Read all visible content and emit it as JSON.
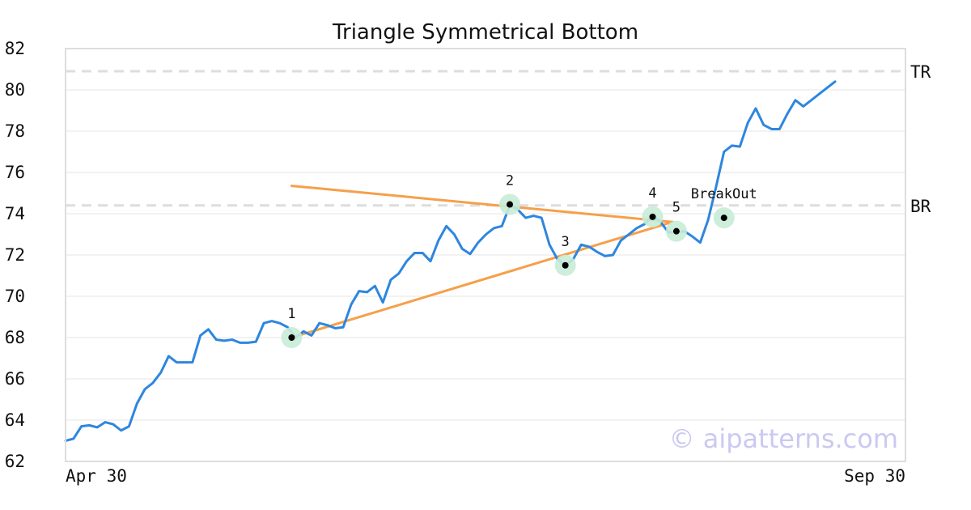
{
  "chart_data": {
    "type": "line",
    "title": "Triangle Symmetrical Bottom",
    "x_start_label": "Apr 30",
    "x_end_label": "Sep 30",
    "ylim": [
      62,
      82
    ],
    "y_ticks": [
      "62",
      "64",
      "66",
      "68",
      "70",
      "72",
      "74",
      "76",
      "78",
      "80",
      "82"
    ],
    "grid": true,
    "colors": {
      "price": "#2e86de",
      "trend": "#f5a04a",
      "marker_halo": "#c7ecd6",
      "reference": "#dddddd",
      "grid": "#e6e6e6",
      "frame": "#dddddd",
      "watermark": "#c9c9f2"
    },
    "series": [
      {
        "values": [
          63.0,
          63.1,
          63.7,
          63.75,
          63.65,
          63.9,
          63.8,
          63.5,
          63.7,
          64.8,
          65.5,
          65.8,
          66.3,
          67.1,
          66.8,
          66.8,
          66.8,
          68.1,
          68.4,
          67.9,
          67.85,
          67.9,
          67.75,
          67.75,
          67.8,
          68.7,
          68.8,
          68.7,
          68.5,
          68.0,
          68.3,
          68.1,
          68.7,
          68.6,
          68.45,
          68.5,
          69.6,
          70.25,
          70.2,
          70.5,
          69.7,
          70.8,
          71.1,
          71.7,
          72.1,
          72.1,
          71.7,
          72.7,
          73.4,
          73.0,
          72.3,
          72.05,
          72.6,
          73.0,
          73.3,
          73.4,
          74.4,
          74.2,
          73.8,
          73.9,
          73.8,
          72.5,
          71.8,
          71.5,
          71.8,
          72.5,
          72.4,
          72.15,
          71.95,
          72.0,
          72.7,
          73.0,
          73.3,
          73.5,
          73.9,
          73.6,
          73.1,
          73.1,
          73.15,
          72.9,
          72.6,
          73.7,
          75.3,
          77.0,
          77.3,
          77.25,
          78.4,
          79.1,
          78.3,
          78.1,
          78.1,
          78.85,
          79.5,
          79.2,
          79.5,
          79.8,
          80.1,
          80.4
        ]
      }
    ],
    "trend_lines": [
      {
        "from": [
          28.5,
          75.35
        ],
        "to": [
          76.5,
          73.6
        ]
      },
      {
        "from": [
          28.5,
          68.0
        ],
        "to": [
          76.5,
          73.6
        ]
      }
    ],
    "reference_lines": [
      {
        "label": "TR",
        "y": 80.9
      },
      {
        "label": "BR",
        "y": 74.4
      }
    ],
    "points": [
      {
        "label": "1",
        "x": 28.5,
        "y": 68.0
      },
      {
        "label": "2",
        "x": 56.0,
        "y": 74.45
      },
      {
        "label": "3",
        "x": 63.0,
        "y": 71.5
      },
      {
        "label": "4",
        "x": 74.0,
        "y": 73.85
      },
      {
        "label": "5",
        "x": 77.0,
        "y": 73.15
      },
      {
        "label": "BreakOut",
        "x": 83.0,
        "y": 73.8
      }
    ],
    "watermark": "© aipatterns.com"
  }
}
